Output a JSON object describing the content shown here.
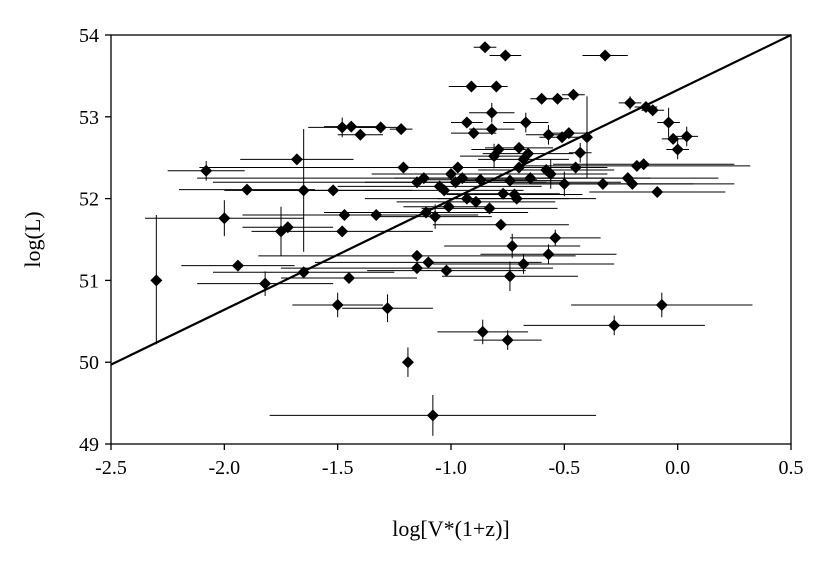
{
  "chart_data": {
    "type": "scatter",
    "xlabel": "log[V*(1+z)]",
    "ylabel": "log(L)",
    "xlim": [
      -2.5,
      0.5
    ],
    "ylim": [
      49,
      54
    ],
    "xticks": [
      -2.5,
      -2.0,
      -1.5,
      -1.0,
      -0.5,
      0.0,
      0.5
    ],
    "xtick_labels": [
      "-2.5",
      "-2.0",
      "-1.5",
      "-1.0",
      "-0.5",
      "0.0",
      "0.5"
    ],
    "yticks": [
      49,
      50,
      51,
      52,
      53,
      54
    ],
    "ytick_labels": [
      "49",
      "50",
      "51",
      "52",
      "53",
      "54"
    ],
    "grid": false,
    "legend": false,
    "marker": "diamond",
    "colors": {
      "marker": "#000000",
      "errorbar": "#000000",
      "line": "#000000"
    },
    "fit_line": {
      "x": [
        -2.5,
        0.5
      ],
      "y": [
        49.97,
        54.0
      ]
    },
    "points": [
      {
        "x": -2.3,
        "y": 51.0,
        "yerr": [
          0.78,
          0.8
        ]
      },
      {
        "x": -2.08,
        "y": 52.34,
        "xerr": [
          0.17,
          0.17
        ],
        "yerr": [
          0.12,
          0.12
        ]
      },
      {
        "x": -2.0,
        "y": 51.76,
        "xerr": [
          0.35,
          0.35
        ],
        "yerr": [
          0.22,
          0.22
        ]
      },
      {
        "x": -1.94,
        "y": 51.18,
        "xerr": [
          0.25,
          0.25
        ]
      },
      {
        "x": -1.9,
        "y": 52.11,
        "xerr": [
          0.3,
          0.3
        ]
      },
      {
        "x": -1.82,
        "y": 50.96,
        "xerr": [
          0.3,
          0.3
        ],
        "yerr": [
          0.15,
          0.15
        ]
      },
      {
        "x": -1.75,
        "y": 51.6,
        "yerr": [
          0.3,
          0.3
        ]
      },
      {
        "x": -1.72,
        "y": 51.65,
        "xerr": [
          0.2,
          0.2
        ]
      },
      {
        "x": -1.68,
        "y": 52.48,
        "xerr": [
          0.25,
          0.25
        ]
      },
      {
        "x": -1.65,
        "y": 52.1,
        "xerr": [
          0.35,
          0.35
        ],
        "yerr": [
          0.75,
          0.75
        ]
      },
      {
        "x": -1.65,
        "y": 51.1,
        "xerr": [
          0.4,
          0.4
        ]
      },
      {
        "x": -1.52,
        "y": 52.1,
        "xerr": [
          0.35,
          0.35
        ]
      },
      {
        "x": -1.5,
        "y": 50.7,
        "xerr": [
          0.2,
          0.2
        ],
        "yerr": [
          0.15,
          0.15
        ]
      },
      {
        "x": -1.48,
        "y": 52.87,
        "xerr": [
          0.15,
          0.15
        ],
        "yerr": [
          0.12,
          0.12
        ]
      },
      {
        "x": -1.48,
        "y": 51.6,
        "xerr": [
          0.4,
          0.4
        ]
      },
      {
        "x": -1.47,
        "y": 51.8,
        "xerr": [
          0.45,
          0.45
        ]
      },
      {
        "x": -1.45,
        "y": 51.03,
        "xerr": [
          0.3,
          0.3
        ]
      },
      {
        "x": -1.44,
        "y": 52.88,
        "xerr": [
          0.12,
          0.12
        ]
      },
      {
        "x": -1.4,
        "y": 52.78,
        "xerr": [
          0.1,
          0.1
        ]
      },
      {
        "x": -1.33,
        "y": 51.8,
        "xerr": [
          0.45,
          0.45
        ]
      },
      {
        "x": -1.31,
        "y": 52.87,
        "xerr": [
          0.1,
          0.1
        ]
      },
      {
        "x": -1.28,
        "y": 50.66,
        "xerr": [
          0.2,
          0.2
        ],
        "yerr": [
          0.17,
          0.17
        ]
      },
      {
        "x": -1.22,
        "y": 52.85,
        "xerr": [
          0.05,
          0.05
        ]
      },
      {
        "x": -1.21,
        "y": 52.38,
        "xerr": [
          0.9,
          0.9
        ]
      },
      {
        "x": -1.19,
        "y": 50.0,
        "yerr": [
          0.18,
          0.18
        ]
      },
      {
        "x": -1.15,
        "y": 52.2,
        "xerr": [
          0.9,
          0.9
        ]
      },
      {
        "x": -1.15,
        "y": 51.3,
        "xerr": [
          0.7,
          0.7
        ]
      },
      {
        "x": -1.15,
        "y": 51.15,
        "xerr": [
          0.6,
          0.6
        ]
      },
      {
        "x": -1.12,
        "y": 52.25,
        "xerr": [
          1.0,
          1.0
        ]
      },
      {
        "x": -1.11,
        "y": 51.83,
        "xerr": [
          0.45,
          0.45
        ]
      },
      {
        "x": -1.1,
        "y": 51.22,
        "xerr": [
          0.5,
          0.5
        ]
      },
      {
        "x": -1.08,
        "y": 49.35,
        "xerr": [
          0.72,
          0.72
        ],
        "yerr": [
          0.25,
          0.25
        ]
      },
      {
        "x": -1.07,
        "y": 51.78,
        "xerr": [
          0.25,
          0.25
        ],
        "yerr": [
          0.15,
          0.15
        ]
      },
      {
        "x": -1.05,
        "y": 52.15,
        "xerr": [
          0.45,
          0.45
        ]
      },
      {
        "x": -1.03,
        "y": 52.1,
        "xerr": [
          0.35,
          0.35
        ]
      },
      {
        "x": -1.02,
        "y": 51.12,
        "xerr": [
          0.35,
          0.35
        ]
      },
      {
        "x": -1.01,
        "y": 51.9,
        "xerr": [
          0.2,
          0.2
        ]
      },
      {
        "x": -1.0,
        "y": 52.3,
        "xerr": [
          0.35,
          0.35
        ]
      },
      {
        "x": -0.98,
        "y": 52.2,
        "xerr": [
          0.4,
          0.4
        ]
      },
      {
        "x": -0.97,
        "y": 52.38,
        "xerr": [
          0.4,
          0.4
        ]
      },
      {
        "x": -0.95,
        "y": 52.25,
        "xerr": [
          0.3,
          0.3
        ]
      },
      {
        "x": -0.93,
        "y": 52.0,
        "xerr": [
          0.45,
          0.45
        ]
      },
      {
        "x": -0.93,
        "y": 52.93,
        "xerr": [
          0.07,
          0.07
        ]
      },
      {
        "x": -0.91,
        "y": 53.37,
        "xerr": [
          0.1,
          0.1
        ]
      },
      {
        "x": -0.9,
        "y": 52.8,
        "xerr": [
          0.1,
          0.1
        ]
      },
      {
        "x": -0.89,
        "y": 51.96,
        "xerr": [
          0.35,
          0.35
        ]
      },
      {
        "x": -0.87,
        "y": 52.23,
        "xerr": [
          0.25,
          0.25
        ]
      },
      {
        "x": -0.86,
        "y": 50.37,
        "xerr": [
          0.2,
          0.2
        ],
        "yerr": [
          0.15,
          0.15
        ]
      },
      {
        "x": -0.85,
        "y": 53.85,
        "xerr": [
          0.05,
          0.05
        ]
      },
      {
        "x": -0.83,
        "y": 51.88,
        "xerr": [
          0.3,
          0.3
        ]
      },
      {
        "x": -0.82,
        "y": 52.85,
        "xerr": [
          0.1,
          0.1
        ]
      },
      {
        "x": -0.82,
        "y": 53.05,
        "xerr": [
          0.1,
          0.1
        ],
        "yerr": [
          0.12,
          0.12
        ]
      },
      {
        "x": -0.81,
        "y": 52.52,
        "xerr": [
          0.15,
          0.15
        ],
        "yerr": [
          0.15,
          0.15
        ]
      },
      {
        "x": -0.8,
        "y": 53.37,
        "xerr": [
          0.05,
          0.05
        ]
      },
      {
        "x": -0.79,
        "y": 52.6,
        "xerr": [
          0.12,
          0.12
        ]
      },
      {
        "x": -0.78,
        "y": 51.68,
        "xerr": [
          0.3,
          0.3
        ]
      },
      {
        "x": -0.77,
        "y": 52.06,
        "xerr": [
          0.25,
          0.25
        ]
      },
      {
        "x": -0.76,
        "y": 53.75,
        "xerr": [
          0.07,
          0.07
        ]
      },
      {
        "x": -0.75,
        "y": 50.27,
        "xerr": [
          0.15,
          0.15
        ],
        "yerr": [
          0.12,
          0.12
        ]
      },
      {
        "x": -0.74,
        "y": 52.22,
        "xerr": [
          0.25,
          0.25
        ]
      },
      {
        "x": -0.74,
        "y": 51.05,
        "xerr": [
          0.3,
          0.3
        ],
        "yerr": [
          0.18,
          0.18
        ]
      },
      {
        "x": -0.73,
        "y": 51.42,
        "xerr": [
          0.3,
          0.3
        ],
        "yerr": [
          0.15,
          0.15
        ]
      },
      {
        "x": -0.72,
        "y": 52.05,
        "xerr": [
          0.3,
          0.3
        ]
      },
      {
        "x": -0.71,
        "y": 52.0,
        "xerr": [
          0.35,
          0.35
        ]
      },
      {
        "x": -0.7,
        "y": 52.38,
        "xerr": [
          0.3,
          0.3
        ]
      },
      {
        "x": -0.7,
        "y": 52.62,
        "xerr": [
          0.15,
          0.15
        ]
      },
      {
        "x": -0.68,
        "y": 52.48,
        "xerr": [
          0.2,
          0.2
        ]
      },
      {
        "x": -0.68,
        "y": 51.2,
        "xerr": [
          0.4,
          0.4
        ],
        "yerr": [
          0.12,
          0.12
        ]
      },
      {
        "x": -0.67,
        "y": 52.93,
        "xerr": [
          0.1,
          0.1
        ],
        "yerr": [
          0.12,
          0.12
        ]
      },
      {
        "x": -0.66,
        "y": 52.55,
        "xerr": [
          0.2,
          0.2
        ]
      },
      {
        "x": -0.65,
        "y": 52.25,
        "xerr": [
          0.25,
          0.25
        ]
      },
      {
        "x": -0.6,
        "y": 53.22,
        "xerr": [
          0.05,
          0.05
        ]
      },
      {
        "x": -0.58,
        "y": 52.35,
        "xerr": [
          0.3,
          0.3
        ]
      },
      {
        "x": -0.57,
        "y": 51.32,
        "xerr": [
          0.3,
          0.3
        ],
        "yerr": [
          0.12,
          0.12
        ]
      },
      {
        "x": -0.57,
        "y": 52.78,
        "xerr": [
          0.1,
          0.1
        ],
        "yerr": [
          0.12,
          0.12
        ]
      },
      {
        "x": -0.56,
        "y": 52.3,
        "xerr": [
          0.25,
          0.25
        ],
        "yerr": [
          0.18,
          0.18
        ]
      },
      {
        "x": -0.54,
        "y": 51.52,
        "xerr": [
          0.2,
          0.2
        ],
        "yerr": [
          0.1,
          0.1
        ]
      },
      {
        "x": -0.53,
        "y": 53.22,
        "xerr": [
          0.05,
          0.05
        ]
      },
      {
        "x": -0.51,
        "y": 52.75,
        "xerr": [
          0.1,
          0.1
        ]
      },
      {
        "x": -0.5,
        "y": 52.18,
        "xerr": [
          0.15,
          0.15
        ],
        "yerr": [
          0.15,
          0.15
        ]
      },
      {
        "x": -0.48,
        "y": 52.8,
        "xerr": [
          0.1,
          0.1
        ]
      },
      {
        "x": -0.46,
        "y": 53.27,
        "xerr": [
          0.05,
          0.05
        ]
      },
      {
        "x": -0.45,
        "y": 52.38,
        "xerr": [
          0.1,
          0.1
        ]
      },
      {
        "x": -0.43,
        "y": 52.56,
        "xerr": [
          0.05,
          0.05
        ],
        "yerr": [
          0.12,
          0.12
        ]
      },
      {
        "x": -0.4,
        "y": 52.75,
        "yerr": [
          0.5,
          0.5
        ]
      },
      {
        "x": -0.33,
        "y": 52.18,
        "xerr": [
          0.4,
          0.4
        ]
      },
      {
        "x": -0.32,
        "y": 53.75,
        "xerr": [
          0.1,
          0.1
        ]
      },
      {
        "x": -0.28,
        "y": 50.45,
        "xerr": [
          0.4,
          0.4
        ],
        "yerr": [
          0.12,
          0.12
        ]
      },
      {
        "x": -0.22,
        "y": 52.25,
        "xerr": [
          0.4,
          0.4
        ]
      },
      {
        "x": -0.21,
        "y": 53.17,
        "xerr": [
          0.05,
          0.05
        ],
        "yerr": [
          0.08,
          0.08
        ]
      },
      {
        "x": -0.2,
        "y": 52.18,
        "xerr": [
          0.45,
          0.45
        ]
      },
      {
        "x": -0.18,
        "y": 52.4,
        "xerr": [
          0.5,
          0.5
        ]
      },
      {
        "x": -0.15,
        "y": 52.42,
        "xerr": [
          0.4,
          0.4
        ]
      },
      {
        "x": -0.14,
        "y": 53.12,
        "xerr": [
          0.05,
          0.05
        ]
      },
      {
        "x": -0.11,
        "y": 53.08,
        "xerr": [
          0.05,
          0.05
        ]
      },
      {
        "x": -0.09,
        "y": 52.08,
        "xerr": [
          0.3,
          0.3
        ]
      },
      {
        "x": -0.07,
        "y": 50.7,
        "xerr": [
          0.4,
          0.4
        ],
        "yerr": [
          0.15,
          0.15
        ]
      },
      {
        "x": -0.04,
        "y": 52.93,
        "xerr": [
          0.05,
          0.05
        ],
        "yerr": [
          0.18,
          0.18
        ]
      },
      {
        "x": -0.02,
        "y": 52.73,
        "xerr": [
          0.05,
          0.05
        ]
      },
      {
        "x": 0.0,
        "y": 52.6,
        "xerr": [
          0.05,
          0.05
        ],
        "yerr": [
          0.12,
          0.12
        ]
      },
      {
        "x": 0.04,
        "y": 52.76,
        "xerr": [
          0.05,
          0.05
        ],
        "yerr": [
          0.12,
          0.12
        ]
      }
    ]
  }
}
